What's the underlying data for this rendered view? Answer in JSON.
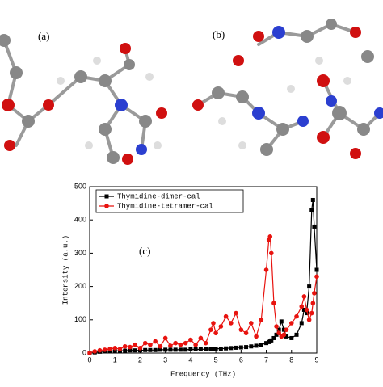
{
  "panel_labels": [
    "(a)",
    "(b)"
  ],
  "chart_data": {
    "type": "line",
    "annotation": "(c)",
    "xlabel": "Frequency (THz)",
    "ylabel": "Intensity (a.u.)",
    "xlim": [
      0,
      9
    ],
    "ylim": [
      0,
      500
    ],
    "xticks": [
      0,
      1,
      2,
      3,
      4,
      5,
      6,
      7,
      8,
      9
    ],
    "yticks": [
      0,
      100,
      200,
      300,
      400,
      500
    ],
    "legend": "upper left",
    "x": [
      0,
      0.2,
      0.4,
      0.6,
      0.8,
      1.0,
      1.2,
      1.4,
      1.6,
      1.8,
      2.0,
      2.2,
      2.4,
      2.6,
      2.8,
      3.0,
      3.2,
      3.4,
      3.6,
      3.8,
      4.0,
      4.2,
      4.4,
      4.6,
      4.8,
      4.9,
      5.0,
      5.2,
      5.4,
      5.6,
      5.8,
      6.0,
      6.2,
      6.4,
      6.6,
      6.8,
      7.0,
      7.1,
      7.15,
      7.2,
      7.3,
      7.4,
      7.5,
      7.6,
      7.7,
      7.8,
      8.0,
      8.2,
      8.4,
      8.5,
      8.6,
      8.7,
      8.8,
      8.85,
      8.9,
      9.0
    ],
    "series": [
      {
        "name": "Thymidine-dimer-cal",
        "color": "#000000",
        "marker": "square",
        "values": [
          0,
          2,
          4,
          5,
          6,
          6,
          7,
          7,
          8,
          8,
          8,
          9,
          9,
          9,
          10,
          10,
          10,
          10,
          10,
          10,
          11,
          11,
          11,
          12,
          12,
          12,
          13,
          13,
          14,
          15,
          16,
          17,
          18,
          20,
          22,
          25,
          30,
          33,
          35,
          38,
          45,
          55,
          70,
          95,
          70,
          50,
          45,
          55,
          90,
          130,
          120,
          200,
          430,
          460,
          380,
          250
        ]
      },
      {
        "name": "Thymidine-tetramer-cal",
        "color": "#e8130f",
        "marker": "circle",
        "values": [
          0,
          5,
          8,
          10,
          12,
          15,
          12,
          20,
          18,
          25,
          15,
          30,
          25,
          35,
          20,
          45,
          22,
          30,
          25,
          30,
          40,
          25,
          45,
          30,
          70,
          90,
          60,
          80,
          110,
          90,
          120,
          70,
          60,
          90,
          50,
          100,
          250,
          340,
          350,
          300,
          150,
          80,
          60,
          50,
          55,
          70,
          90,
          110,
          140,
          170,
          130,
          100,
          120,
          150,
          180,
          230
        ]
      }
    ]
  }
}
